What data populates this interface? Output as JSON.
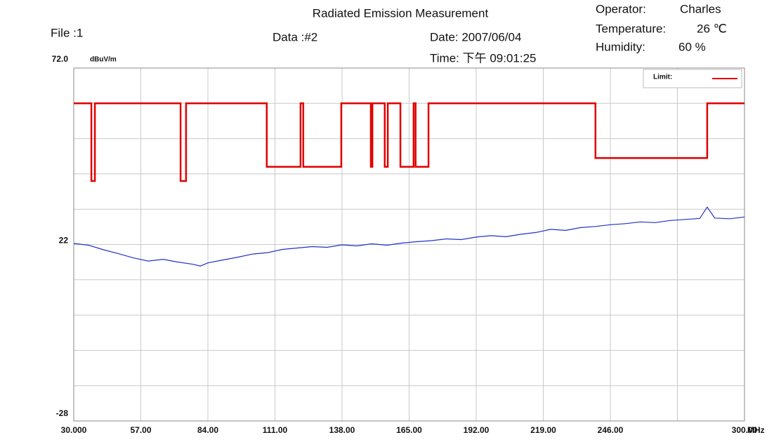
{
  "chart_data": {
    "type": "line",
    "title": "Radiated Emission Measurement",
    "header": {
      "file": "File :1",
      "data": "Data :#2",
      "date": "Date: 2007/06/04",
      "time": "Time: 下午 09:01:25",
      "operator_label": "Operator:",
      "operator": "Charles",
      "temperature_label": "Temperature:",
      "temperature": "26 ℃",
      "humidity_label": "Humidity:",
      "humidity": "60 %"
    },
    "y_unit": "dBuV/m",
    "x_unit": "MHz",
    "xlim": [
      30,
      300
    ],
    "ylim": [
      -28,
      72
    ],
    "xticks": [
      {
        "value": 30,
        "label": "30.000"
      },
      {
        "value": 57,
        "label": "57.00"
      },
      {
        "value": 84,
        "label": "84.00"
      },
      {
        "value": 111,
        "label": "111.00"
      },
      {
        "value": 138,
        "label": "138.00"
      },
      {
        "value": 165,
        "label": "165.00"
      },
      {
        "value": 192,
        "label": "192.00"
      },
      {
        "value": 219,
        "label": "219.00"
      },
      {
        "value": 246,
        "label": "246.00"
      },
      {
        "value": 300,
        "label": "300.00"
      }
    ],
    "x_grid": [
      273
    ],
    "yticks": [
      {
        "value": 72,
        "label": "72.0"
      },
      22,
      -28
    ],
    "y_grid": [
      62,
      52,
      42,
      32,
      12,
      2,
      -8,
      -18
    ],
    "grid": true,
    "legend": "upper right",
    "series": [
      {
        "name": "Limit:",
        "color": "#e00000",
        "x": [
          30,
          37.1,
          37.1,
          38.5,
          38.5,
          73.0,
          73.0,
          75.2,
          75.2,
          107.7,
          107.7,
          121.3,
          121.3,
          122.4,
          122.4,
          137.7,
          137.7,
          149.6,
          149.6,
          150.2,
          150.2,
          155.2,
          155.2,
          156.4,
          156.4,
          161.5,
          161.5,
          166.8,
          166.8,
          167.6,
          167.6,
          172.8,
          172.8,
          240.0,
          240.0,
          285.0,
          285.0,
          300
        ],
        "values": [
          62,
          62,
          40,
          40,
          62,
          62,
          40,
          40,
          62,
          62,
          44,
          44,
          62,
          62,
          44,
          44,
          62,
          62,
          44,
          44,
          62,
          62,
          44,
          44,
          62,
          62,
          44,
          44,
          62,
          62,
          44,
          44,
          62,
          62,
          46.5,
          46.5,
          62,
          62
        ]
      },
      {
        "color": "#2232c8",
        "x": [
          30,
          36,
          42,
          48,
          54,
          60,
          66,
          72,
          78,
          81,
          84,
          90,
          96,
          102,
          108,
          114,
          120,
          126,
          132,
          138,
          144,
          150,
          156,
          162,
          168,
          174,
          180,
          186,
          192,
          198,
          204,
          210,
          216,
          222,
          228,
          234,
          240,
          246,
          252,
          258,
          264,
          270,
          276,
          282,
          285,
          288,
          294,
          300
        ],
        "values": [
          22.3,
          21.8,
          20.5,
          19.4,
          18.2,
          17.3,
          17.8,
          17.0,
          16.4,
          15.9,
          16.8,
          17.6,
          18.4,
          19.3,
          19.7,
          20.6,
          21.0,
          21.4,
          21.2,
          21.9,
          21.6,
          22.2,
          21.8,
          22.4,
          22.8,
          23.1,
          23.6,
          23.4,
          24.1,
          24.5,
          24.2,
          24.9,
          25.4,
          26.3,
          26.0,
          26.8,
          27.1,
          27.6,
          27.9,
          28.4,
          28.2,
          28.8,
          29.1,
          29.4,
          32.6,
          29.5,
          29.3,
          29.8
        ]
      }
    ]
  }
}
